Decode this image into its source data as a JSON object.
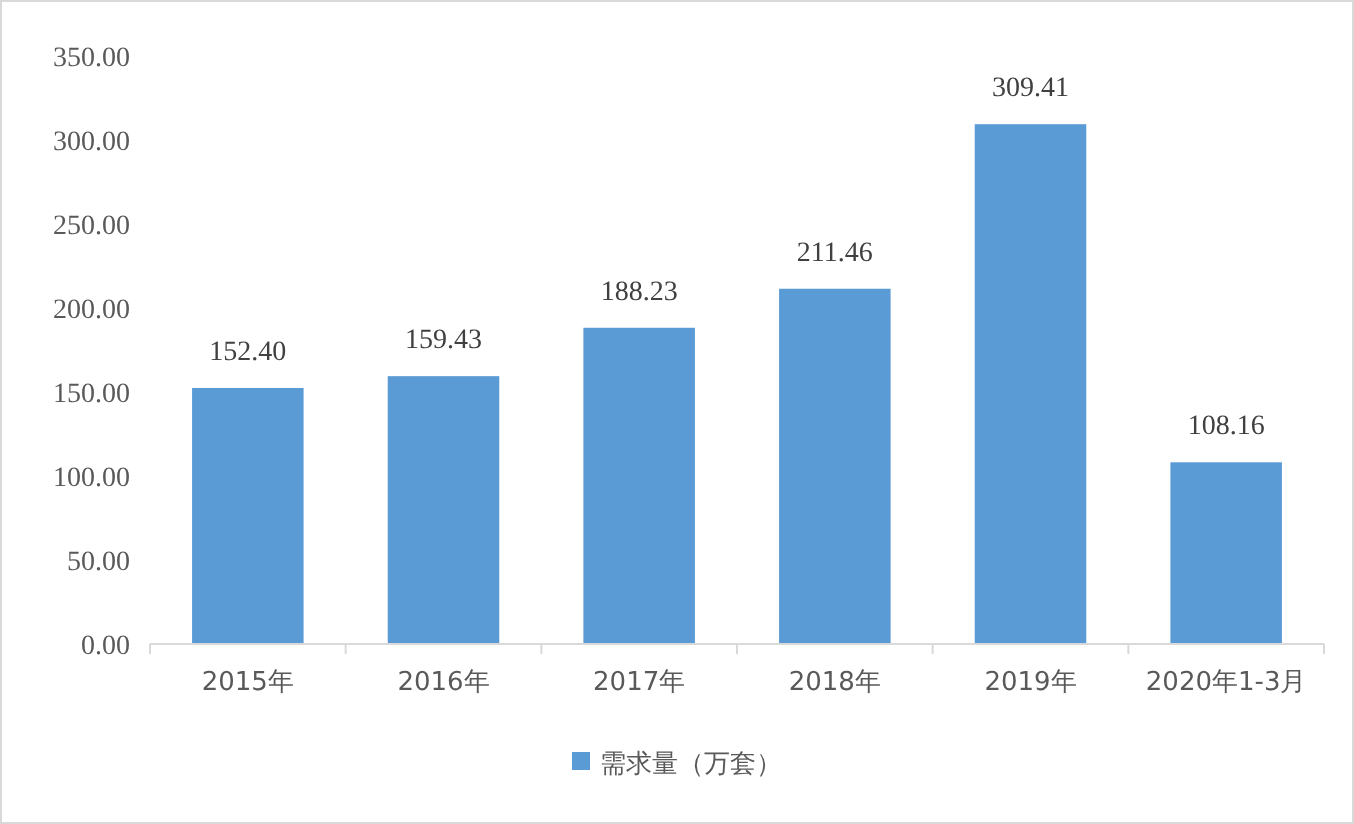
{
  "chart_data": {
    "type": "bar",
    "categories": [
      "2015年",
      "2016年",
      "2017年",
      "2018年",
      "2019年",
      "2020年1-3月"
    ],
    "series": [
      {
        "name": "需求量（万套）",
        "color": "#5b9bd5",
        "values": [
          152.4,
          159.43,
          188.23,
          211.46,
          309.41,
          108.16
        ],
        "value_labels": [
          "152.40",
          "159.43",
          "188.23",
          "211.46",
          "309.41",
          "108.16"
        ]
      }
    ],
    "ylim": [
      0,
      350
    ],
    "yticks": [
      {
        "value": 0,
        "label": "0.00"
      },
      {
        "value": 50,
        "label": "50.00"
      },
      {
        "value": 100,
        "label": "100.00"
      },
      {
        "value": 150,
        "label": "150.00"
      },
      {
        "value": 200,
        "label": "200.00"
      },
      {
        "value": 250,
        "label": "250.00"
      },
      {
        "value": 300,
        "label": "300.00"
      },
      {
        "value": 350,
        "label": "350.00"
      }
    ],
    "grid": false,
    "legend": "bottom"
  }
}
